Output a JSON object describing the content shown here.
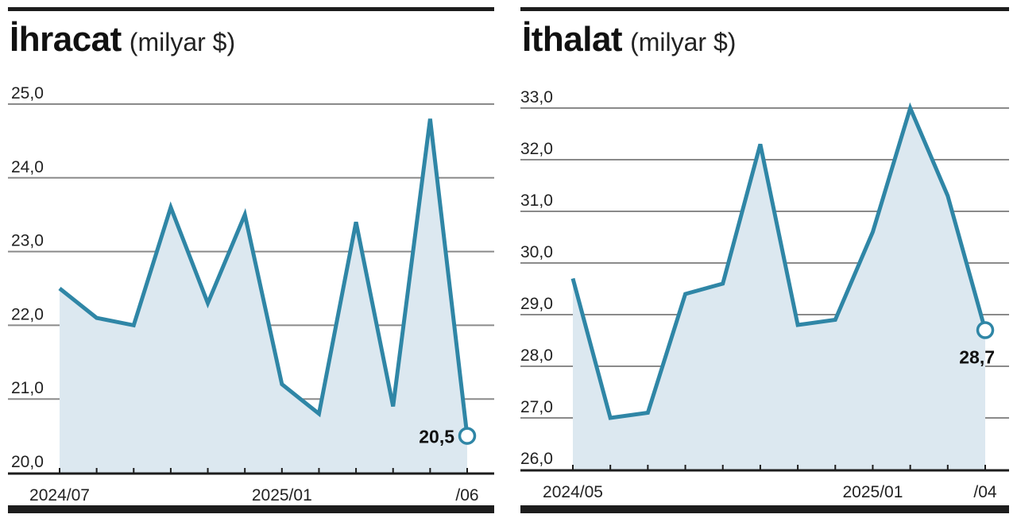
{
  "panels": [
    {
      "title": "İhracat",
      "unit": "(milyar $)",
      "chart_data": {
        "type": "area",
        "title": "İhracat (milyar $)",
        "x_tick_labels": [
          "2024/07",
          "2025/01",
          "/06"
        ],
        "x_tick_indices": [
          0,
          6,
          11
        ],
        "y_tick_labels": [
          "20,0",
          "21,0",
          "22,0",
          "23,0",
          "24,0",
          "25,0"
        ],
        "ylim": [
          20,
          25
        ],
        "series": [
          {
            "values": [
              22.5,
              22.1,
              22.0,
              23.6,
              22.3,
              23.5,
              21.2,
              20.8,
              23.4,
              20.9,
              24.8,
              20.5
            ]
          }
        ],
        "end_label": "20,5",
        "grid": true,
        "line_color": "#2f86a6",
        "fill_color": "#dce8f0"
      }
    },
    {
      "title": "İthalat",
      "unit": "(milyar $)",
      "chart_data": {
        "type": "area",
        "title": "İthalat (milyar $)",
        "x_tick_labels": [
          "2024/05",
          "2025/01",
          "/04"
        ],
        "x_tick_indices": [
          0,
          8,
          11
        ],
        "y_tick_labels": [
          "26,0",
          "27,0",
          "28,0",
          "29,0",
          "30,0",
          "31,0",
          "32,0",
          "33,0"
        ],
        "ylim": [
          26,
          33
        ],
        "series": [
          {
            "values": [
              29.7,
              27.0,
              27.1,
              29.4,
              29.6,
              32.3,
              28.8,
              28.9,
              30.6,
              33.0,
              31.3,
              28.7
            ]
          }
        ],
        "end_label": "28,7",
        "grid": true,
        "line_color": "#2f86a6",
        "fill_color": "#dce8f0"
      }
    }
  ]
}
